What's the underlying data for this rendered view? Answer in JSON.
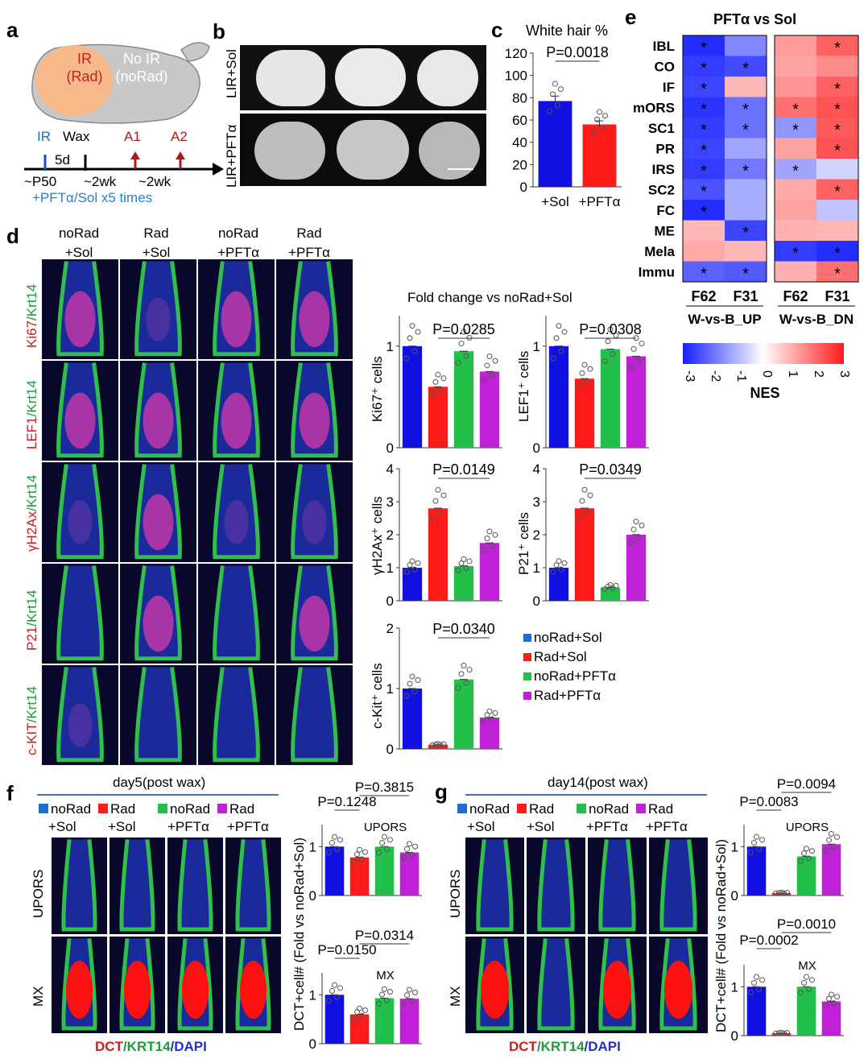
{
  "panel_labels": {
    "a": "a",
    "b": "b",
    "c": "c",
    "d": "d",
    "e": "e",
    "f": "f",
    "g": "g"
  },
  "panel_a": {
    "mouse_left": "IR\n(Rad)",
    "mouse_right": "No IR\n(noRad)",
    "timeline": {
      "ir": "IR",
      "wax": "Wax",
      "a1": "A1",
      "a2": "A2",
      "gap": "5d",
      "p50": "~P50",
      "wk1": "~2wk",
      "wk2": "~2wk",
      "treatment": "+PFTα/Sol x5 times"
    }
  },
  "panel_b": {
    "row_labels": [
      "LIR+Sol",
      "LIR+PFTα"
    ]
  },
  "panel_c": {
    "chart_data": {
      "type": "bar",
      "title": "White hair %",
      "categories": [
        "+Sol",
        "+PFTα"
      ],
      "values": [
        77,
        56
      ],
      "yticks": [
        0,
        20,
        40,
        60,
        80,
        100,
        120
      ],
      "ylim": [
        0,
        120
      ],
      "pvalue": "P=0.0018",
      "colors": [
        "#1010e0",
        "#ff1a1a"
      ]
    }
  },
  "panel_d": {
    "col_labels": [
      "noRad\n+Sol",
      "Rad\n+Sol",
      "noRad\n+PFTα",
      "Rad\n+PFTα"
    ],
    "row_labels": [
      {
        "a": "Ki67",
        "b": "/Krt14"
      },
      {
        "a": "LEF1",
        "b": "/Krt14"
      },
      {
        "a": "γH2Ax",
        "b": "/Krt14"
      },
      {
        "a": "P21",
        "b": "/Krt14"
      },
      {
        "a": "c-KIT",
        "b": "/Krt14"
      }
    ],
    "chart_header": "Fold change vs noRad+Sol",
    "charts": [
      {
        "ylabel": "Ki67⁺ cells",
        "yticks": [
          0,
          1
        ],
        "ylim": [
          0,
          1.3
        ],
        "values": [
          1.0,
          0.6,
          0.95,
          0.75
        ],
        "pvalue": "P=0.0285",
        "pair": [
          1,
          3
        ]
      },
      {
        "ylabel": "LEF1⁺ cells",
        "yticks": [
          0,
          1
        ],
        "ylim": [
          0,
          1.3
        ],
        "values": [
          1.0,
          0.68,
          0.97,
          0.9
        ],
        "pvalue": "P=0.0308",
        "pair": [
          1,
          3
        ]
      },
      {
        "ylabel": "γH2Ax⁺ cells",
        "yticks": [
          0,
          1,
          2,
          3,
          4
        ],
        "ylim": [
          0,
          4
        ],
        "values": [
          1.0,
          2.8,
          1.05,
          1.75
        ],
        "pvalue": "P=0.0149",
        "pair": [
          1,
          3
        ]
      },
      {
        "ylabel": "P21⁺ cells",
        "yticks": [
          0,
          1,
          2,
          3,
          4
        ],
        "ylim": [
          0,
          4
        ],
        "values": [
          1.0,
          2.8,
          0.4,
          2.0
        ],
        "pvalue": "P=0.0349",
        "pair": [
          1,
          3
        ]
      },
      {
        "ylabel": "c-Kit⁺ cells",
        "yticks": [
          0,
          1,
          2
        ],
        "ylim": [
          0,
          2
        ],
        "values": [
          1.0,
          0.07,
          1.15,
          0.52
        ],
        "pvalue": "P=0.0340",
        "pair": [
          1,
          3
        ]
      }
    ],
    "legend": [
      {
        "label": "noRad+Sol",
        "color": "#1a6fd1"
      },
      {
        "label": "Rad+Sol",
        "color": "#ff1a1a"
      },
      {
        "label": "noRad+PFTα",
        "color": "#22c04a"
      },
      {
        "label": "Rad+PFTα",
        "color": "#c020d8"
      }
    ]
  },
  "panel_e": {
    "title": "PFTα vs Sol",
    "rows": [
      "IBL",
      "CO",
      "IF",
      "mORS",
      "SC1",
      "PR",
      "IRS",
      "SC2",
      "FC",
      "ME",
      "Mela",
      "Immu"
    ],
    "col_labels": [
      "F62",
      "F31",
      "F62",
      "F31"
    ],
    "group_labels": [
      "W-vs-B_UP",
      "W-vs-B_DN"
    ],
    "colorbar_ticks": [
      "-3",
      "-2",
      "-1",
      "0",
      "1",
      "2",
      "3"
    ],
    "colorbar_label": "NES",
    "nes": [
      [
        -2.8,
        -1.6,
        1.4,
        2.2
      ],
      [
        -2.6,
        -2.4,
        1.3,
        1.6
      ],
      [
        -2.5,
        1.0,
        1.5,
        2.2
      ],
      [
        -2.7,
        -1.9,
        2.0,
        2.4
      ],
      [
        -2.6,
        -1.9,
        -1.4,
        2.3
      ],
      [
        -2.5,
        -1.2,
        1.3,
        2.4
      ],
      [
        -2.6,
        -1.8,
        -1.2,
        -0.6
      ],
      [
        -2.3,
        -1.1,
        1.2,
        2.2
      ],
      [
        -2.8,
        -1.1,
        1.3,
        -0.8
      ],
      [
        1.0,
        -2.5,
        1.1,
        1.0
      ],
      [
        1.2,
        1.0,
        -2.6,
        -2.8
      ],
      [
        -2.1,
        -2.2,
        1.1,
        2.0
      ]
    ],
    "stars": [
      [
        1,
        0,
        0,
        1
      ],
      [
        1,
        1,
        0,
        0
      ],
      [
        1,
        0,
        0,
        1
      ],
      [
        1,
        1,
        1,
        1
      ],
      [
        1,
        1,
        1,
        1
      ],
      [
        1,
        0,
        0,
        1
      ],
      [
        1,
        1,
        1,
        0
      ],
      [
        1,
        0,
        0,
        1
      ],
      [
        1,
        0,
        0,
        0
      ],
      [
        0,
        1,
        0,
        0
      ],
      [
        0,
        0,
        1,
        1
      ],
      [
        1,
        1,
        0,
        1
      ]
    ],
    "star_glyph": "*"
  },
  "panel_f": {
    "header": "day5(post wax)",
    "legend": [
      {
        "l1": "noRad",
        "l2": "+Sol",
        "color": "#1a6fd1"
      },
      {
        "l1": "Rad",
        "l2": "+Sol",
        "color": "#ff1a1a"
      },
      {
        "l1": "noRad",
        "l2": "+PFTα",
        "color": "#22c04a"
      },
      {
        "l1": "Rad",
        "l2": "+PFTα",
        "color": "#c020d8"
      }
    ],
    "row_labels": [
      "UPORS",
      "MX"
    ],
    "stain": {
      "a": "DCT",
      "b": "/KRT14",
      "c": "/DAPI"
    },
    "ylabel": "DCT+cell# (Fold vs noRad+Sol)",
    "charts": [
      {
        "name": "UPORS",
        "values": [
          1.0,
          0.78,
          1.0,
          0.88
        ],
        "yticks": [
          0,
          1
        ],
        "p1": "P=0.1248",
        "p2": "P=0.3815"
      },
      {
        "name": "MX",
        "values": [
          1.0,
          0.6,
          0.93,
          0.92
        ],
        "yticks": [
          0,
          1
        ],
        "p1": "P=0.0150",
        "p2": "P=0.0314"
      }
    ]
  },
  "panel_g": {
    "header": "day14(post wax)",
    "legend": [
      {
        "l1": "noRad",
        "l2": "+Sol",
        "color": "#1a6fd1"
      },
      {
        "l1": "Rad",
        "l2": "+Sol",
        "color": "#ff1a1a"
      },
      {
        "l1": "noRad",
        "l2": "+PFTα",
        "color": "#22c04a"
      },
      {
        "l1": "Rad",
        "l2": "+PFTα",
        "color": "#c020d8"
      }
    ],
    "row_labels": [
      "UPORS",
      "MX"
    ],
    "stain": {
      "a": "DCT",
      "b": "/KRT14",
      "c": "/DAPI"
    },
    "ylabel": "DCT+cell# (Fold vs noRad+Sol)",
    "charts": [
      {
        "name": "UPORS",
        "values": [
          1.0,
          0.05,
          0.8,
          1.05
        ],
        "yticks": [
          0,
          1
        ],
        "p1": "P=0.0083",
        "p2": "P=0.0094"
      },
      {
        "name": "MX",
        "values": [
          1.0,
          0.05,
          1.0,
          0.7
        ],
        "yticks": [
          0,
          1
        ],
        "p1": "P=0.0002",
        "p2": "P=0.0010"
      }
    ]
  },
  "bar_colors": [
    "#1010e0",
    "#ff1a1a",
    "#22c04a",
    "#c020d8"
  ]
}
